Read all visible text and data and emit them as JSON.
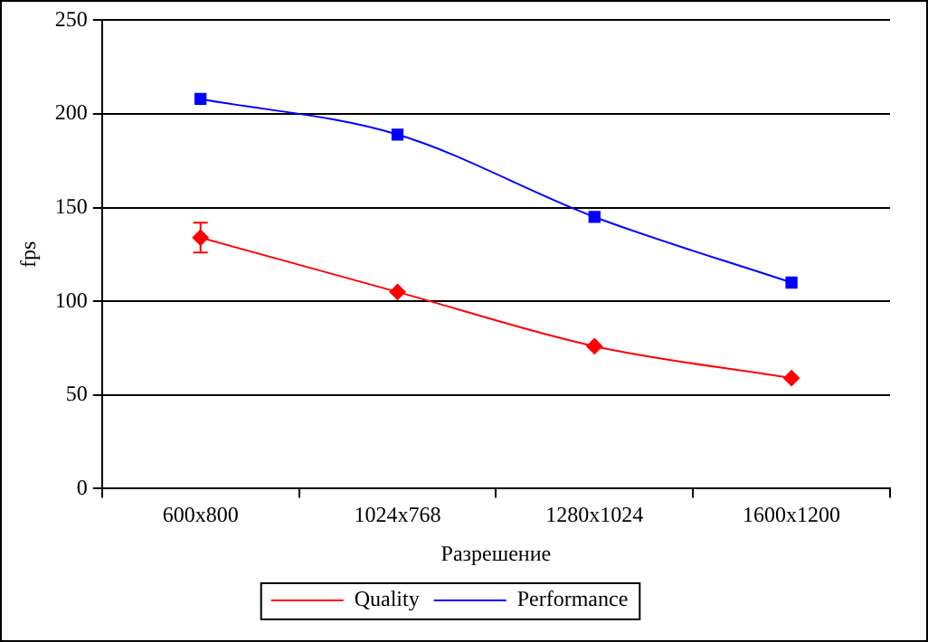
{
  "chart_data": {
    "type": "line",
    "xlabel": "Разрешение",
    "ylabel": "fps",
    "categories": [
      "600x800",
      "1024x768",
      "1280x1024",
      "1600x1200"
    ],
    "series": [
      {
        "name": "Quality",
        "color": "#ff0000",
        "values": [
          134,
          105,
          76,
          59
        ],
        "errors": [
          [
            126,
            142
          ],
          null,
          null,
          null
        ],
        "marker": "diamond"
      },
      {
        "name": "Performance",
        "color": "#0000ff",
        "values": [
          208,
          189,
          145,
          110
        ],
        "marker": "square"
      }
    ],
    "ylim": [
      0,
      250
    ],
    "yticks": [
      0,
      50,
      100,
      150,
      200,
      250
    ],
    "grid": "y",
    "legend": "bottom",
    "line_style": "solid"
  }
}
